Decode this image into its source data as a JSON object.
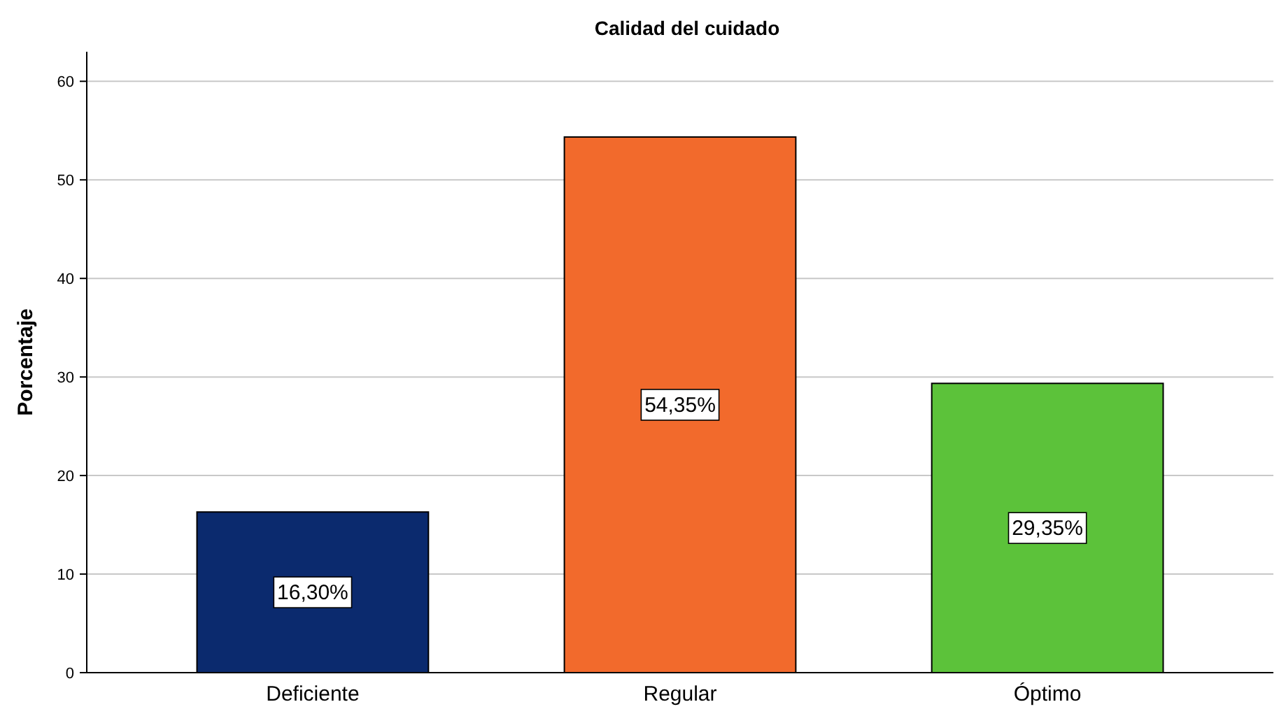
{
  "chart_data": {
    "type": "bar",
    "title": "Calidad del cuidado",
    "ylabel": "Porcentaje",
    "categories": [
      "Deficiente",
      "Regular",
      "Óptimo"
    ],
    "values": [
      16.3,
      54.35,
      29.35
    ],
    "colors": [
      "#0b2a6e",
      "#f26a2c",
      "#5cc23a"
    ],
    "value_labels": [
      "16,30%",
      "54,35%",
      "29,35%"
    ],
    "ylim": [
      0,
      63
    ],
    "yticks": [
      0,
      10,
      20,
      30,
      40,
      50,
      60
    ],
    "grid": "y"
  }
}
